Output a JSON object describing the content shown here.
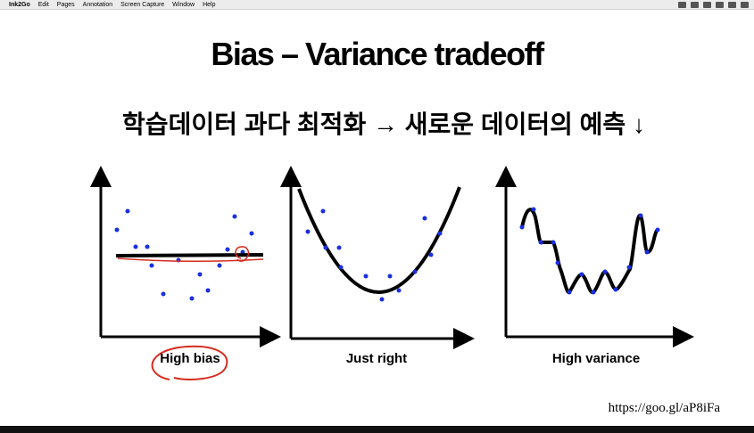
{
  "menu_bar": {
    "app": "Ink2Go",
    "items": [
      "Edit",
      "Pages",
      "Annotation",
      "Screen Capture",
      "Window",
      "Help"
    ]
  },
  "slide": {
    "title": "Bias – Variance tradeoff",
    "subtitle": "학습데이터 과다 최적화 → 새로운 데이터의 예측 ↓",
    "panels": [
      {
        "caption": "High bias"
      },
      {
        "caption": "Just right"
      },
      {
        "caption": "High variance"
      }
    ],
    "source": "https://goo.gl/aP8iFa"
  }
}
